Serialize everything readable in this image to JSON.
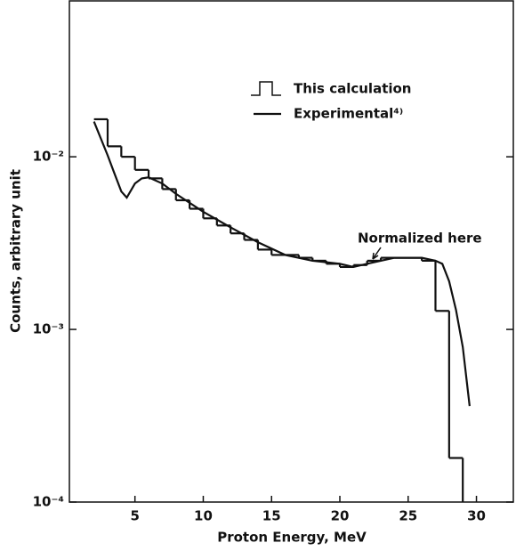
{
  "chart_data": {
    "type": "histogram",
    "xlabel": "Proton  Energy, MeV",
    "ylabel": "Counts, arbitrary unit",
    "xlim": [
      0.2,
      32.7
    ],
    "xticks": [
      5,
      10,
      15,
      20,
      25,
      30
    ],
    "ylim": [
      0.0001,
      0.08
    ],
    "yticks": [
      {
        "value": 0.01,
        "label": "10⁻²"
      },
      {
        "value": 0.001,
        "label": "10⁻³"
      },
      {
        "value": 0.0001,
        "label": "10⁻⁴"
      }
    ],
    "log_y": true,
    "annotation": "Normalized here",
    "series": [
      {
        "name": "This calculation",
        "type": "histogram",
        "color": "#111111",
        "bins": [
          2,
          3,
          4,
          5,
          6,
          7,
          8,
          9,
          10,
          11,
          12,
          13,
          14,
          15,
          16,
          17,
          18,
          19,
          20,
          21,
          22,
          23,
          24,
          25,
          26,
          27,
          28,
          29
        ],
        "values": [
          0.0165,
          0.0115,
          0.01,
          0.0084,
          0.0075,
          0.0065,
          0.0056,
          0.005,
          0.0044,
          0.004,
          0.0036,
          0.0033,
          0.0029,
          0.0027,
          0.0027,
          0.0026,
          0.0025,
          0.0024,
          0.0023,
          0.00236,
          0.0025,
          0.0026,
          0.0026,
          0.0026,
          0.0025,
          0.00128,
          0.00018
        ]
      },
      {
        "name": "Experimental⁴⁾",
        "type": "line",
        "color": "#111111",
        "x": [
          2,
          3,
          3.5,
          4,
          4.4,
          5,
          5.5,
          6,
          7,
          8,
          10,
          12,
          14,
          16,
          18,
          20,
          21,
          22,
          24,
          26,
          27,
          27.5,
          28,
          28.5,
          29,
          29.5
        ],
        "values": [
          0.016,
          0.0102,
          0.008,
          0.0063,
          0.0058,
          0.007,
          0.0075,
          0.0076,
          0.007,
          0.0061,
          0.0048,
          0.0039,
          0.0032,
          0.0027,
          0.0025,
          0.0024,
          0.0023,
          0.0024,
          0.0026,
          0.0026,
          0.0025,
          0.0024,
          0.0019,
          0.0013,
          0.00079,
          0.00036
        ]
      }
    ]
  }
}
